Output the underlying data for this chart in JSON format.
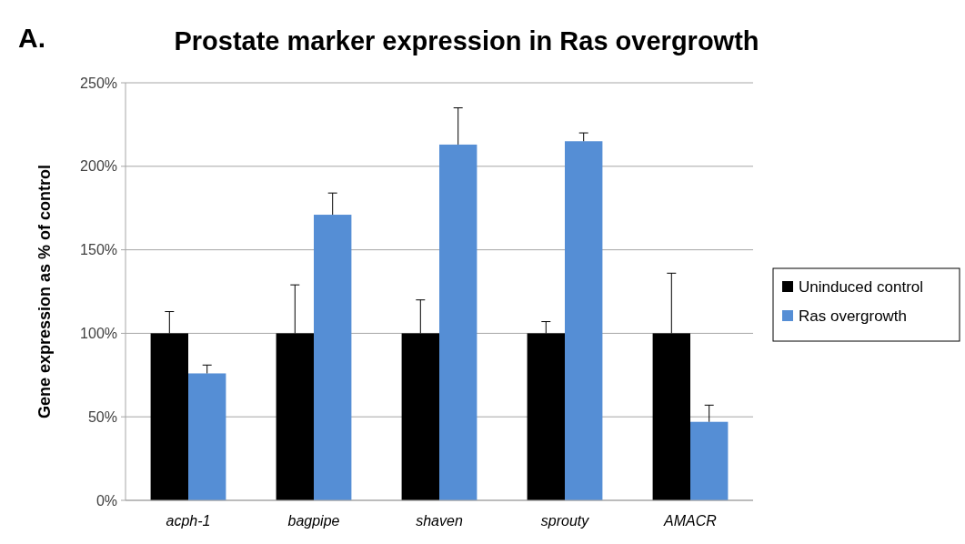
{
  "chart_data": {
    "type": "bar",
    "title": "Prostate marker expression in Ras overgrowth",
    "ylabel": "Gene expression as % of control",
    "annotations": [
      "A."
    ],
    "categories": [
      "acph-1",
      "bagpipe",
      "shaven",
      "sprouty",
      "AMACR"
    ],
    "series": [
      {
        "name": "Uninduced control",
        "color": "#000000",
        "values": [
          100,
          100,
          100,
          100,
          100
        ],
        "errors": [
          [
            100,
            113
          ],
          [
            100,
            129
          ],
          [
            100,
            120
          ],
          [
            100,
            107
          ],
          [
            100,
            136
          ]
        ]
      },
      {
        "name": "Ras overgrowth",
        "color": "#558ed5",
        "values": [
          76,
          171,
          213,
          215,
          47
        ],
        "errors": [
          [
            76,
            81
          ],
          [
            171,
            184
          ],
          [
            213,
            235
          ],
          [
            215,
            220
          ],
          [
            47,
            57
          ]
        ]
      }
    ],
    "ylim": [
      0,
      250
    ],
    "yticks": [
      {
        "value": 0,
        "label": "0%"
      },
      {
        "value": 50,
        "label": "50%"
      },
      {
        "value": 100,
        "label": "100%"
      },
      {
        "value": 150,
        "label": "150%"
      },
      {
        "value": 200,
        "label": "200%"
      },
      {
        "value": 250,
        "label": "250%"
      }
    ],
    "grid": "y",
    "legend": "right"
  }
}
